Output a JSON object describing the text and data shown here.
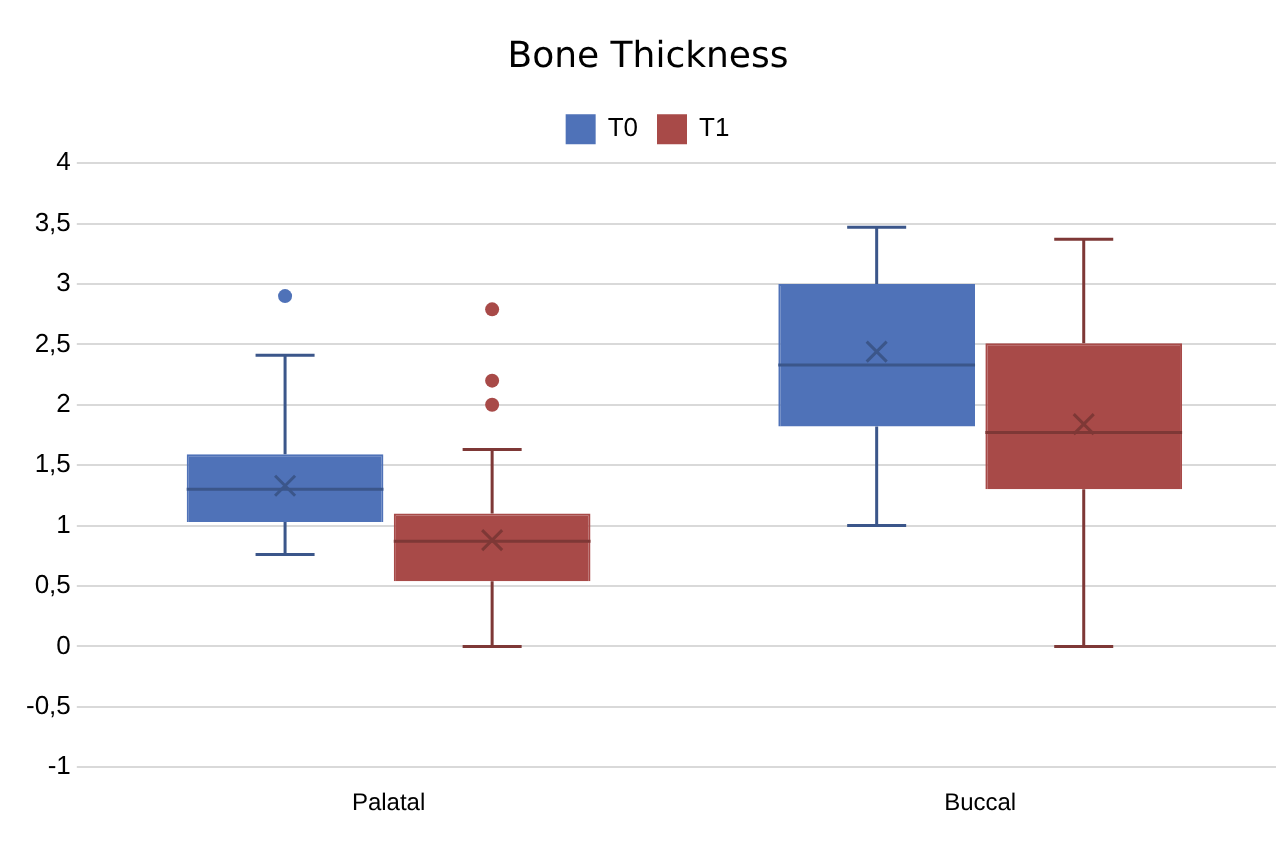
{
  "chart_data": {
    "type": "box",
    "title": "Bone Thickness",
    "categories": [
      "Palatal",
      "Buccal"
    ],
    "series": [
      {
        "name": "T0",
        "color": "#4f72b8",
        "boxes": [
          {
            "low": 0.76,
            "q1": 1.03,
            "median": 1.3,
            "q3": 1.59,
            "high": 2.41,
            "mean": 1.33,
            "outliers": [
              2.9
            ]
          },
          {
            "low": 1.0,
            "q1": 1.82,
            "median": 2.33,
            "q3": 3.0,
            "high": 3.47,
            "mean": 2.44
          }
        ]
      },
      {
        "name": "T1",
        "color": "#a84a48",
        "boxes": [
          {
            "low": 0,
            "q1": 0.54,
            "median": 0.87,
            "q3": 1.1,
            "high": 1.63,
            "mean": 0.88,
            "outliers": [
              2.0,
              2.2,
              2.79
            ]
          },
          {
            "low": 0,
            "q1": 1.3,
            "median": 1.77,
            "q3": 2.51,
            "high": 3.37,
            "mean": 1.84
          }
        ]
      }
    ],
    "ylim": [
      -1,
      4
    ],
    "yticks": [
      -1,
      {
        "value": -0.5,
        "label": "-0,5"
      },
      0,
      {
        "value": 0.5,
        "label": "0,5"
      },
      1,
      {
        "value": 1.5,
        "label": "1,5"
      },
      2,
      {
        "value": 2.5,
        "label": "2,5"
      },
      3,
      {
        "value": 3.5,
        "label": "3,5"
      },
      4
    ],
    "grid": "y",
    "legend": "top"
  }
}
